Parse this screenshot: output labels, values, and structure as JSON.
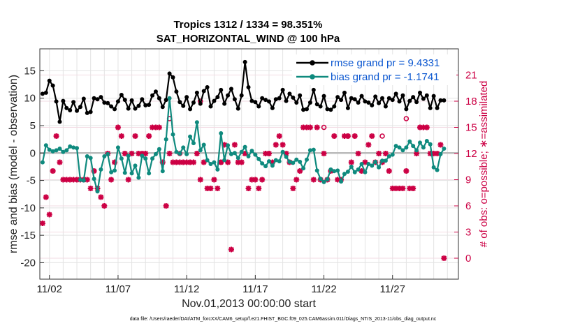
{
  "chart_data": {
    "type": "line",
    "title": "Tropics 1312 / 1334 = 98.351%",
    "subtitle": "SAT_HORIZONTAL_WIND @ 100 hPa",
    "xlabel": "Nov.01,2013 00:00:00 start",
    "ylabel": "rmse and bias (model - observation)",
    "ylabel_right": "# of obs: o=possible; ∗=assimilated",
    "footnote": "data file: /Users/raeder/DAI/ATM_forcXX/CAM6_setup/f.e21.FHIST_BGC.f09_025.CAM6assim.011/Diags_NTrS_2013-11/obs_diag_output.nc",
    "x_range_days": [
      0.3,
      30.8
    ],
    "ylim": [
      -23,
      19
    ],
    "ylim_right": [
      -2.4,
      24
    ],
    "grid": true,
    "xtick_positions_days": [
      1,
      6,
      11,
      16,
      21,
      26
    ],
    "xticks": [
      "11/02",
      "11/07",
      "11/12",
      "11/17",
      "11/22",
      "11/27"
    ],
    "yticks": [
      "15",
      "10",
      "5",
      "0",
      "-5",
      "-10",
      "-15",
      "-20"
    ],
    "ytick_values": [
      15,
      10,
      5,
      0,
      -5,
      -10,
      -15,
      -20
    ],
    "yticks_right": [
      "21",
      "18",
      "15",
      "12",
      "9",
      "6",
      "3",
      "0"
    ],
    "ytick_right_values": [
      21,
      18,
      15,
      12,
      9,
      6,
      3,
      0
    ],
    "x_start_day": 0.5,
    "x_step_days": 0.25,
    "series": [
      {
        "name": "rmse grand pr = 9.4331",
        "color": "#000000",
        "marker": "circle",
        "values": [
          10.8,
          11.0,
          13.2,
          12.3,
          9.4,
          5.7,
          9.5,
          8.2,
          7.8,
          9.3,
          7.7,
          8.4,
          9.9,
          7.3,
          7.5,
          10.0,
          9.8,
          10.2,
          9.2,
          9.1,
          8.5,
          8.0,
          9.4,
          10.6,
          9.7,
          8.1,
          9.6,
          8.1,
          8.6,
          9.8,
          8.7,
          8.8,
          10.5,
          11.2,
          10.0,
          8.4,
          9.7,
          14.5,
          13.8,
          11.2,
          9.3,
          8.6,
          10.2,
          8.0,
          9.2,
          11.0,
          9.0,
          11.3,
          12.0,
          8.5,
          9.5,
          10.2,
          11.5,
          9.0,
          10.5,
          11.7,
          9.8,
          8.1,
          10.5,
          16.6,
          12.0,
          9.5,
          9.3,
          8.5,
          10.0,
          9.7,
          9.4,
          8.2,
          9.8,
          10.0,
          11.5,
          9.5,
          10.8,
          10.1,
          9.2,
          10.5,
          7.9,
          8.0,
          9.2,
          11.5,
          8.9,
          8.5,
          10.4,
          8.0,
          7.9,
          8.5,
          10.2,
          9.7,
          11.0,
          8.2,
          10.0,
          9.8,
          9.2,
          10.4,
          9.4,
          9.2,
          8.7,
          10.3,
          9.1,
          10.0,
          8.5,
          10.0,
          9.7,
          10.8,
          9.4,
          10.5,
          8.0,
          9.5,
          10.2,
          9.3,
          11.0,
          9.9,
          10.5,
          8.2,
          10.4,
          8.2,
          9.6,
          9.6
        ],
        "hidden_gaps": []
      },
      {
        "name": "bias grand pr = -1.1741",
        "color": "#0f8a7e",
        "marker": "circle",
        "values": [
          -1.7,
          1.4,
          0.6,
          0.3,
          0.5,
          0.8,
          0.2,
          0.5,
          1.2,
          1.0,
          0.9,
          -4.9,
          -5.0,
          -0.6,
          -0.9,
          -4.7,
          -7.0,
          -3.0,
          -0.6,
          -0.2,
          -3.5,
          -3.2,
          1.0,
          -1.0,
          -3.6,
          -0.5,
          -3.7,
          -2.3,
          -4.5,
          -0.5,
          -1.0,
          -3.7,
          -1.0,
          -0.2,
          0.7,
          -3.3,
          2.5,
          10.0,
          3.4,
          0.2,
          -0.1,
          1.0,
          -0.2,
          3.0,
          1.8,
          5.6,
          0.5,
          1.5,
          -1.3,
          -2.0,
          -1.7,
          -3.0,
          3.6,
          -1.3,
          1.4,
          -0.2,
          0.0,
          -0.9,
          0.2,
          1.1,
          -0.6,
          0.4,
          -0.3,
          -1.1,
          -1.9,
          -2.4,
          -1.5,
          -2.3,
          -1.3,
          -1.5,
          0.2,
          -0.7,
          -1.6,
          -1.8,
          -1.2,
          -1.6,
          -2.8,
          -1.2,
          0.5,
          0.6,
          -3.2,
          -4.7,
          -5.3,
          -4.8,
          -3.0,
          -3.3,
          -3.2,
          -5.2,
          -3.8,
          -3.4,
          -2.5,
          -3.5,
          -3.0,
          -2.0,
          -3.5,
          -2.0,
          -2.3,
          -1.6,
          -2.6,
          -1.4,
          -1.4,
          -0.6,
          -0.3,
          1.3,
          1.0,
          0.5,
          1.0,
          2.1,
          1.3,
          0.5,
          1.9,
          1.0,
          2.2,
          1.6,
          -2.6,
          -3.1,
          -0.2,
          0.8
        ],
        "hidden_gaps": []
      }
    ],
    "obs_color": "#cc0044",
    "obs_assimilated_label": "∗=assimilated",
    "obs_assimilated": [
      4,
      7,
      5,
      10,
      14,
      11,
      9,
      9,
      9,
      9,
      9,
      9,
      9,
      9,
      8,
      10,
      8,
      7,
      6,
      12,
      9,
      11,
      15,
      14,
      12,
      9,
      12,
      14,
      12,
      12,
      12,
      14,
      15,
      15,
      15,
      11,
      6,
      12,
      11,
      11,
      11,
      11,
      11,
      11,
      11,
      12,
      9,
      11,
      8,
      8,
      9,
      8,
      11,
      13,
      11,
      1,
      13,
      11,
      11,
      12,
      8,
      9,
      9,
      8,
      9,
      12,
      12,
      11,
      13,
      14,
      13,
      12,
      11,
      8,
      9,
      10,
      15,
      15,
      15,
      9,
      15,
      9,
      12,
      9,
      10,
      14,
      9,
      9,
      14,
      14,
      11,
      14,
      12,
      10,
      11,
      13,
      14,
      11,
      12,
      11,
      12,
      10,
      8,
      8,
      8,
      8,
      10,
      8,
      8,
      12,
      15,
      15,
      15,
      12,
      12,
      12,
      13,
      0
    ],
    "obs_possible": [
      {
        "i": 37,
        "v": 16
      },
      {
        "i": 40,
        "v": 12
      },
      {
        "i": 46,
        "v": 18
      },
      {
        "i": 52,
        "v": 11
      },
      {
        "i": 82,
        "v": 15
      },
      {
        "i": 99,
        "v": 14
      },
      {
        "i": 106,
        "v": 16
      }
    ]
  }
}
